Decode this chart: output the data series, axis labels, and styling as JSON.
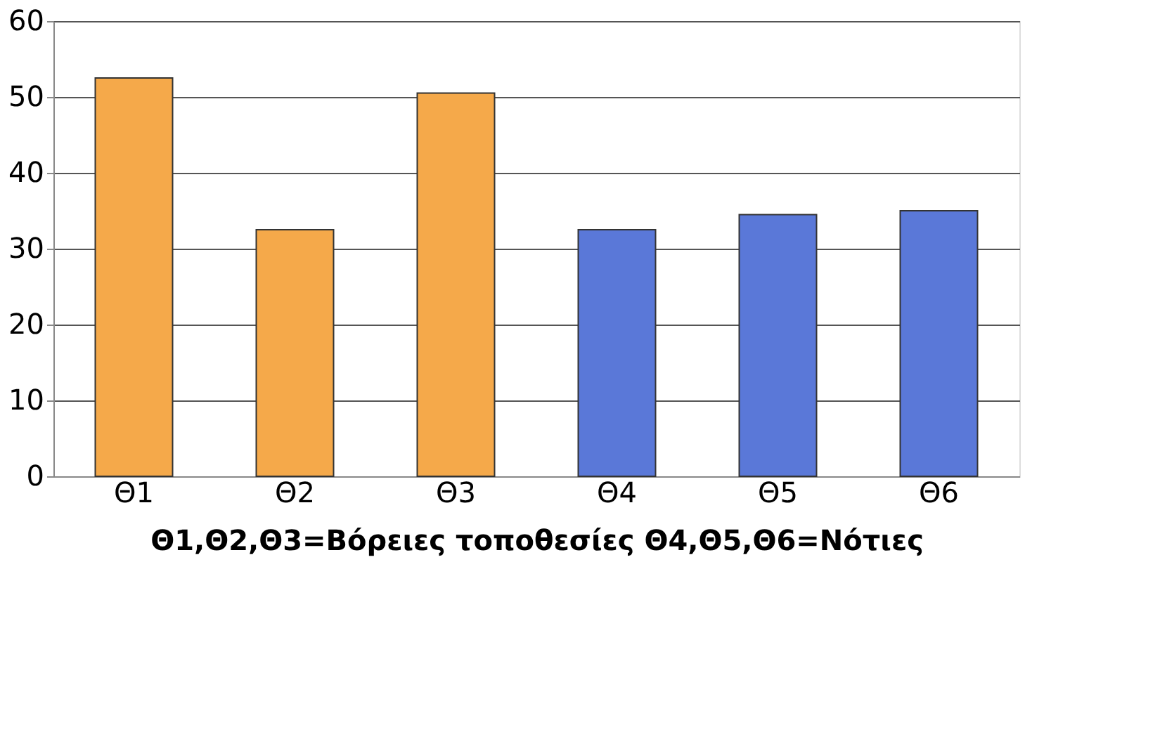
{
  "chart_data": {
    "type": "bar",
    "categories": [
      "Θ1",
      "Θ2",
      "Θ3",
      "Θ4",
      "Θ5",
      "Θ6"
    ],
    "values": [
      52.5,
      32.5,
      50.5,
      32.5,
      34.5,
      35
    ],
    "colors": [
      "#f5a94a",
      "#f5a94a",
      "#f5a94a",
      "#5a78d8",
      "#5a78d8",
      "#5a78d8"
    ],
    "xlabel": "Θ1,Θ2,Θ3=Βόρειες τοποθεσίες    Θ4,Θ5,Θ6=Νότιες",
    "ylim": [
      0,
      60
    ],
    "yticks": [
      0,
      10,
      20,
      30,
      40,
      50,
      60
    ],
    "grid": "y"
  }
}
